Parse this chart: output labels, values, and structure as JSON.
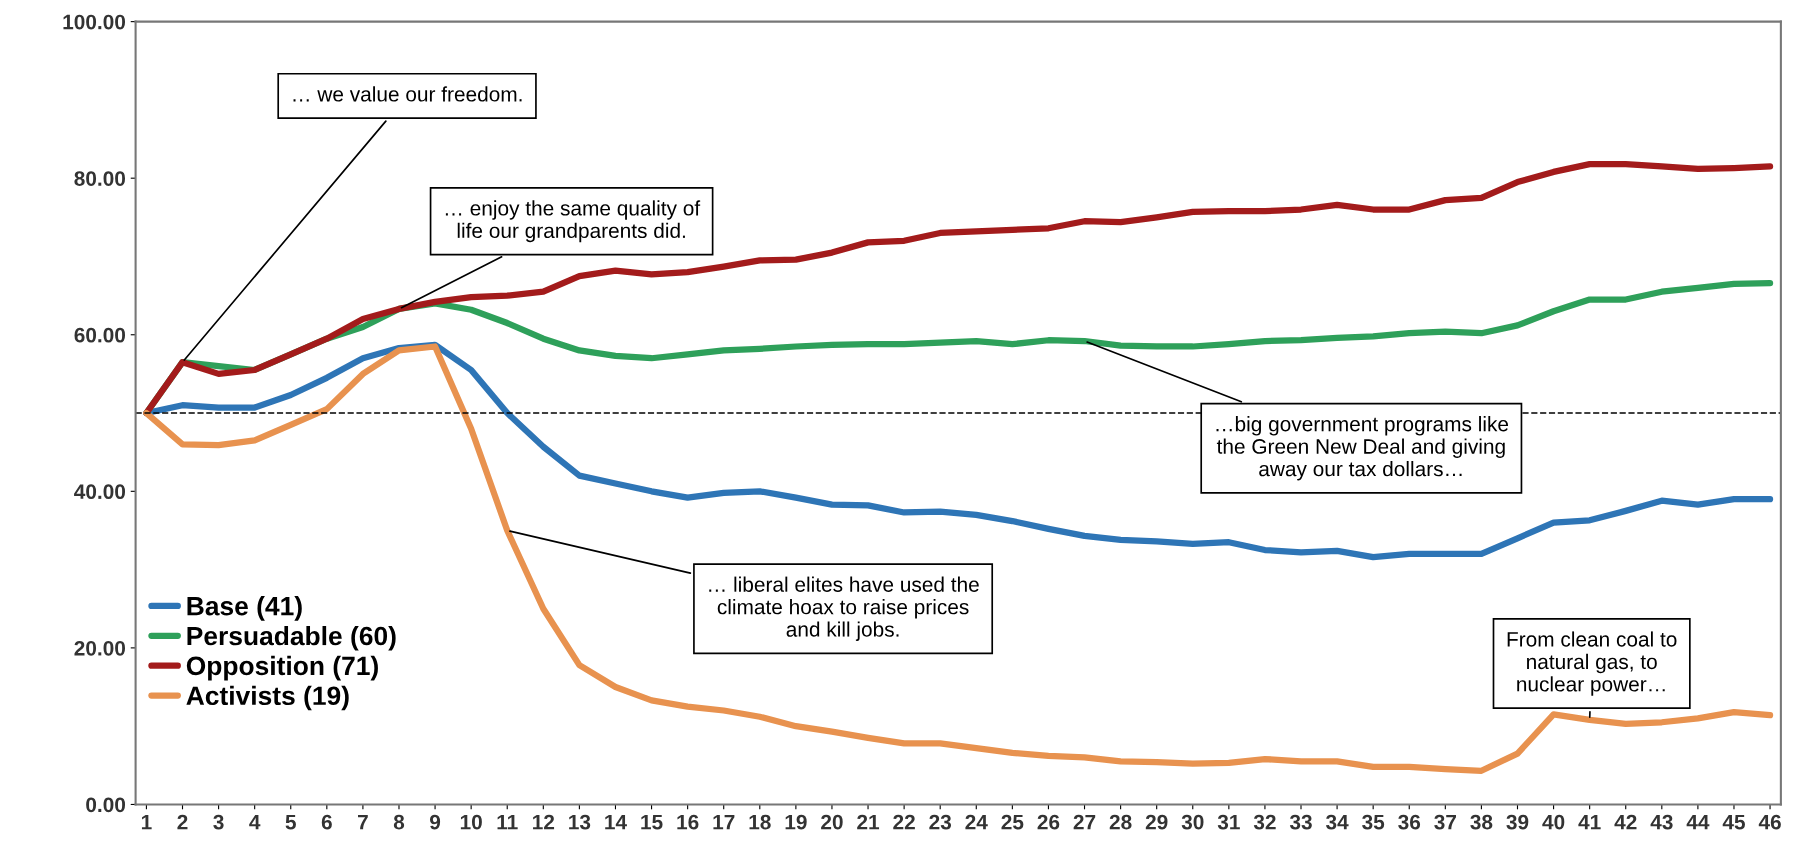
{
  "chart_data": {
    "type": "line",
    "categories": [
      "1",
      "2",
      "3",
      "4",
      "5",
      "6",
      "7",
      "8",
      "9",
      "10",
      "11",
      "12",
      "13",
      "14",
      "15",
      "16",
      "17",
      "18",
      "19",
      "20",
      "21",
      "22",
      "23",
      "24",
      "25",
      "26",
      "27",
      "28",
      "29",
      "30",
      "31",
      "32",
      "33",
      "34",
      "35",
      "36",
      "37",
      "38",
      "39",
      "40",
      "41",
      "42",
      "43",
      "44",
      "45",
      "46"
    ],
    "series": [
      {
        "name": "Base (41)",
        "color": "#2e75b6",
        "values": [
          50,
          51,
          50.7,
          50.7,
          52.3,
          54.5,
          57,
          58.3,
          58.7,
          55.5,
          50,
          45.7,
          42,
          41,
          40,
          39.2,
          39.8,
          40,
          39.2,
          38.3,
          38.2,
          37.3,
          37.4,
          37,
          36.2,
          35.2,
          34.3,
          33.8,
          33.6,
          33.3,
          33.5,
          32.5,
          32.2,
          32.4,
          31.6,
          32,
          32,
          32,
          34,
          36,
          36.3,
          37.5,
          38.8,
          38.3,
          39,
          39
        ]
      },
      {
        "name": "Persuadable (60)",
        "color": "#2ea05a",
        "values": [
          50,
          56.5,
          56,
          55.5,
          57.5,
          59.5,
          61,
          63.3,
          64,
          63.2,
          61.5,
          59.5,
          58,
          57.3,
          57,
          57.5,
          58,
          58.2,
          58.5,
          58.7,
          58.8,
          58.8,
          59,
          59.2,
          58.8,
          59.3,
          59.2,
          58.6,
          58.5,
          58.5,
          58.8,
          59.2,
          59.3,
          59.6,
          59.8,
          60.2,
          60.4,
          60.2,
          61.2,
          63,
          64.5,
          64.5,
          65.5,
          66,
          66.5,
          66.6
        ]
      },
      {
        "name": "Opposition (71)",
        "color": "#a31b1b",
        "values": [
          50,
          56.5,
          55,
          55.5,
          57.5,
          59.5,
          62,
          63.3,
          64.2,
          64.8,
          65,
          65.5,
          67.5,
          68.2,
          67.7,
          68,
          68.7,
          69.5,
          69.6,
          70.5,
          71.8,
          72,
          73,
          73.2,
          73.4,
          73.6,
          74.5,
          74.4,
          75,
          75.7,
          75.8,
          75.8,
          76,
          76.6,
          76,
          76,
          77.2,
          77.5,
          79.5,
          80.8,
          81.8,
          81.8,
          81.5,
          81.2,
          81.3,
          81.5
        ]
      },
      {
        "name": "Activists (19)",
        "color": "#e8924f",
        "values": [
          50,
          46,
          45.9,
          46.5,
          48.5,
          50.5,
          55,
          58,
          58.5,
          48,
          35,
          25,
          17.8,
          15,
          13.3,
          12.5,
          12,
          11.2,
          10,
          9.3,
          8.5,
          7.8,
          7.8,
          7.2,
          6.6,
          6.2,
          6,
          5.5,
          5.4,
          5.2,
          5.3,
          5.8,
          5.5,
          5.5,
          4.8,
          4.8,
          4.5,
          4.3,
          6.5,
          11.5,
          10.8,
          10.3,
          10.5,
          11,
          11.8,
          11.4
        ]
      }
    ],
    "ylim": [
      0,
      100
    ],
    "yticks": [
      {
        "value": 0,
        "label": "0.00"
      },
      {
        "value": 20,
        "label": "20.00"
      },
      {
        "value": 40,
        "label": "40.00"
      },
      {
        "value": 60,
        "label": "60.00"
      },
      {
        "value": 80,
        "label": "80.00"
      },
      {
        "value": 100,
        "label": "100.00"
      }
    ],
    "ref_lines": [
      {
        "axis": "y",
        "value": 50,
        "color": "#000000",
        "line_style": "dashed"
      }
    ],
    "annotations": [
      {
        "text": "… we value our freedom.",
        "x": "2",
        "y": 56.5
      },
      {
        "text": "… enjoy the same quality of\nlife our grandparents did.",
        "x": "8",
        "y": 63.3
      },
      {
        "text": "…big government programs like\nthe Green New Deal and giving\naway our tax dollars…",
        "x": "27",
        "y": 59.2
      },
      {
        "text": "… liberal elites have used the\nclimate hoax to raise prices\nand kill jobs.",
        "x": "11",
        "y": 35
      },
      {
        "text": "From clean coal to\nnatural gas, to\nnuclear power…",
        "x": "41",
        "y": 10.8
      }
    ],
    "legend": "bottom left",
    "grid": false,
    "marker": "none",
    "line_style": "solid"
  }
}
